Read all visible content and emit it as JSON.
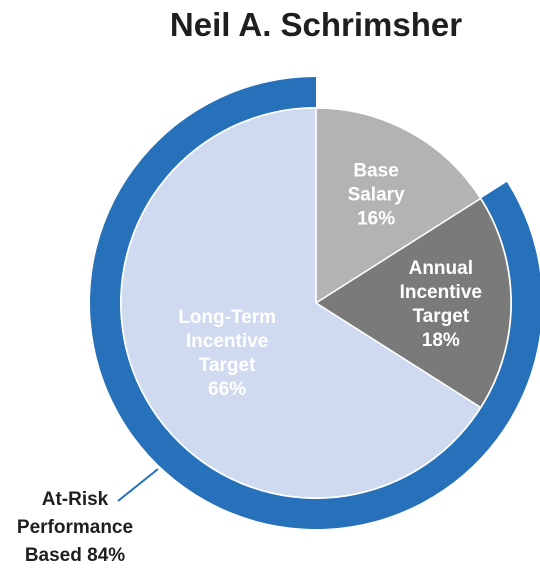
{
  "chart_data": {
    "type": "pie",
    "title": "Neil A. Schrimsher",
    "slices": [
      {
        "lines": [
          "Base",
          "Salary",
          "16%"
        ],
        "value": 16,
        "color": "#b3b3b3",
        "text_color": "#ffffff"
      },
      {
        "lines": [
          "Annual",
          "Incentive",
          "Target",
          "18%"
        ],
        "value": 18,
        "color": "#7a7a7a",
        "text_color": "#ffffff"
      },
      {
        "lines": [
          "Long-Term",
          "Incentive",
          "Target",
          "66%"
        ],
        "value": 66,
        "color": "#cfdaf0",
        "text_color": "#ffffff"
      }
    ],
    "outer_ring": {
      "lines": [
        "At-Risk",
        "Performance",
        "Based 84%"
      ],
      "value": 84,
      "color": "#2671b9"
    }
  }
}
